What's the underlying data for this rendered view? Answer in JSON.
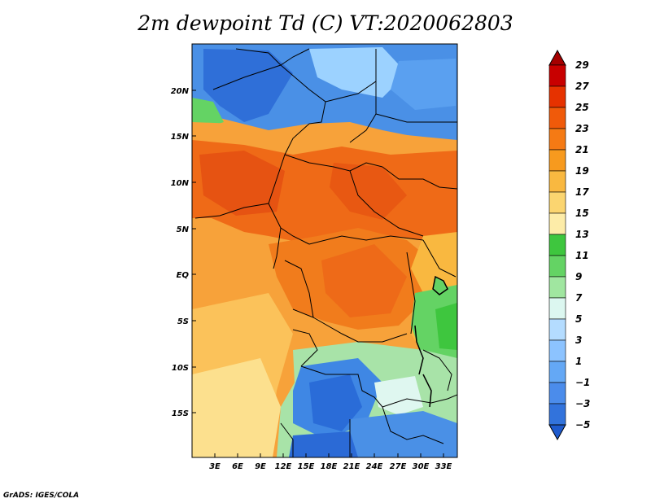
{
  "title": "2m dewpoint Td (C) VT:2020062803",
  "credit": "GrADS: IGES/COLA",
  "axes": {
    "lat_labels": [
      "20N",
      "15N",
      "10N",
      "5N",
      "EQ",
      "5S",
      "10S",
      "15S"
    ],
    "lon_labels": [
      "3E",
      "6E",
      "9E",
      "12E",
      "15E",
      "18E",
      "21E",
      "24E",
      "27E",
      "30E",
      "33E"
    ]
  },
  "colorbar": {
    "labels": [
      "29",
      "27",
      "25",
      "23",
      "21",
      "19",
      "17",
      "15",
      "13",
      "11",
      "9",
      "7",
      "5",
      "3",
      "1",
      "−1",
      "−3",
      "−5"
    ],
    "colors": [
      "#a50000",
      "#c80000",
      "#e63200",
      "#f05a0a",
      "#f57a14",
      "#f79a1e",
      "#f9b840",
      "#fbd570",
      "#fdeca8",
      "#3ec63e",
      "#64d364",
      "#a0e6a0",
      "#dcf7f0",
      "#b4dcff",
      "#8cc3ff",
      "#64a8f5",
      "#4b8ceb",
      "#3273dc",
      "#1e5acd"
    ]
  },
  "legend_palette": {
    "ocean_warm": "#f39a2c",
    "sahel_hot": "#ee5a12",
    "sahara_cold": "#3f87e4",
    "south_cold": "#3777dc",
    "south_green": "#7fd37f",
    "coast_pale": "#fce08e"
  }
}
